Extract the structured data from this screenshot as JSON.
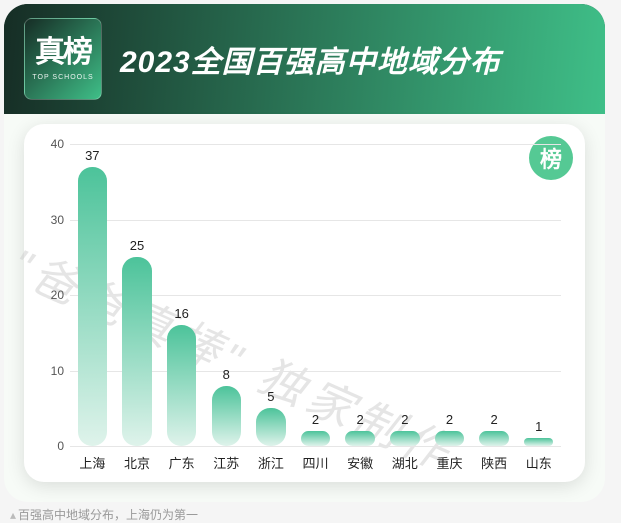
{
  "logo": {
    "main": "真榜",
    "sub": "TOP SCHOOLS"
  },
  "title": "2023全国百强高中地域分布",
  "badge_text": "榜",
  "watermark": "\"爸爸真棒\" 独家制作",
  "caption": "百强高中地域分布，上海仍为第一",
  "colors": {
    "header_grad_left": "#162d25",
    "header_grad_right": "#3fbf88",
    "card_bg": "#f7fbf7",
    "panel_bg": "#ffffff",
    "bar_grad_top": "#4cc39a",
    "bar_grad_bottom": "#dff3eb",
    "badge_bg": "#55c994",
    "grid": "#e6e6e6",
    "axis_text": "#555555"
  },
  "chart": {
    "type": "bar",
    "ylim": [
      0,
      40
    ],
    "ytick_step": 10,
    "yticks": [
      0,
      10,
      20,
      30,
      40
    ],
    "bar_width_pct": 66,
    "title_fontsize": 30,
    "label_fontsize": 13,
    "categories": [
      "上海",
      "北京",
      "广东",
      "江苏",
      "浙江",
      "四川",
      "安徽",
      "湖北",
      "重庆",
      "陕西",
      "山东"
    ],
    "values": [
      37,
      25,
      16,
      8,
      5,
      2,
      2,
      2,
      2,
      2,
      1
    ]
  }
}
